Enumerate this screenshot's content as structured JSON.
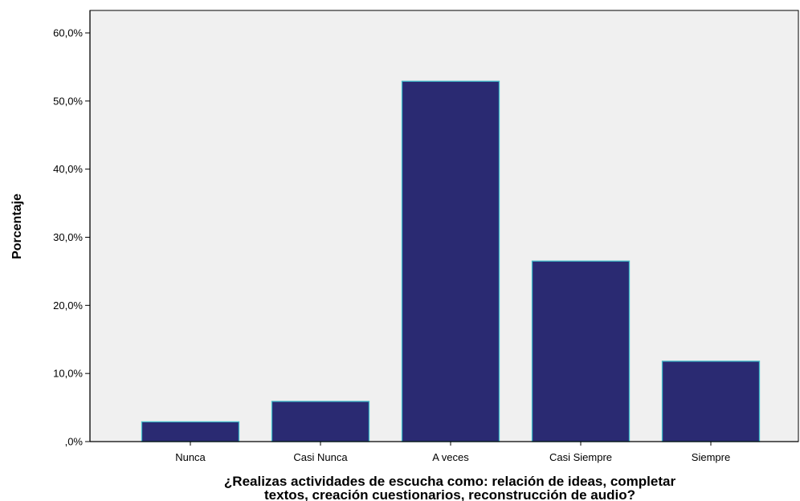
{
  "chart_data": {
    "type": "bar",
    "categories": [
      "Nunca",
      "Casi Nunca",
      "A veces",
      "Casi Siempre",
      "Siempre"
    ],
    "values": [
      2.9,
      5.9,
      52.9,
      26.5,
      11.8
    ],
    "xlabel_lines": [
      "¿Realizas actividades de escucha como: relación de ideas, completar",
      "textos, creación cuestionarios, reconstrucción de audio?"
    ],
    "ylabel": "Porcentaje",
    "ylim": [
      0,
      63.3
    ],
    "yticks": [
      0,
      10,
      20,
      30,
      40,
      50,
      60
    ],
    "ytick_labels": [
      ",0%",
      "10,0%",
      "20,0%",
      "30,0%",
      "40,0%",
      "50,0%",
      "60,0%"
    ],
    "grid": false,
    "legend": false,
    "colors": {
      "plot_background": "#f0f0f0",
      "bar_fill": "#2a2a72",
      "bar_edge": "#3fb8c9",
      "axis": "#000000"
    }
  }
}
